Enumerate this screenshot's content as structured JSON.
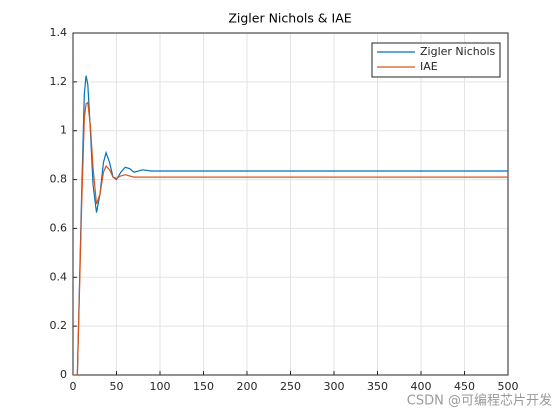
{
  "chart_data": {
    "type": "line",
    "title": "Zigler Nichols & IAE",
    "x": [
      0,
      5,
      10,
      13,
      15,
      17,
      20,
      23,
      27,
      31,
      35,
      38,
      42,
      46,
      50,
      55,
      60,
      65,
      70,
      80,
      90,
      100,
      500
    ],
    "series": [
      {
        "name": "Zigler Nichols",
        "color": "#0072bd",
        "values": [
          0,
          0,
          0.75,
          1.15,
          1.225,
          1.19,
          1.0,
          0.78,
          0.665,
          0.74,
          0.87,
          0.91,
          0.87,
          0.81,
          0.8,
          0.83,
          0.85,
          0.845,
          0.83,
          0.84,
          0.835,
          0.835,
          0.835
        ]
      },
      {
        "name": "IAE",
        "color": "#d95319",
        "values": [
          0,
          0,
          0.7,
          1.05,
          1.11,
          1.115,
          1.02,
          0.85,
          0.7,
          0.74,
          0.83,
          0.855,
          0.84,
          0.81,
          0.805,
          0.815,
          0.82,
          0.815,
          0.81,
          0.81,
          0.81,
          0.81,
          0.81
        ]
      }
    ],
    "xlim": [
      0,
      500
    ],
    "xticks": [
      0,
      50,
      100,
      150,
      200,
      250,
      300,
      350,
      400,
      450,
      500
    ],
    "ylim": [
      0,
      1.4
    ],
    "yticks": [
      0,
      0.2,
      0.4,
      0.6,
      0.8,
      1,
      1.2,
      1.4
    ],
    "grid": true,
    "legend": "top-right"
  },
  "watermark": "CSDN @可编程芯片开发"
}
